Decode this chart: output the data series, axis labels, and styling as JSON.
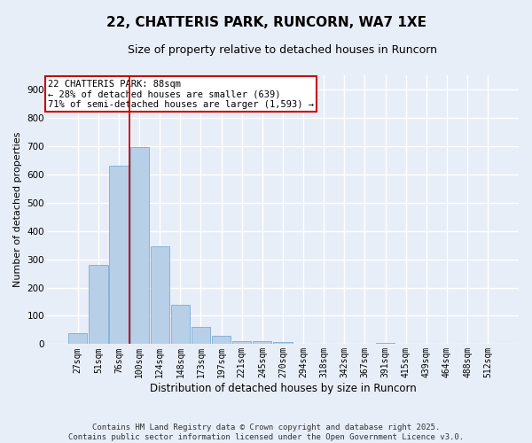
{
  "title": "22, CHATTERIS PARK, RUNCORN, WA7 1XE",
  "subtitle": "Size of property relative to detached houses in Runcorn",
  "xlabel": "Distribution of detached houses by size in Runcorn",
  "ylabel": "Number of detached properties",
  "footer_line1": "Contains HM Land Registry data © Crown copyright and database right 2025.",
  "footer_line2": "Contains public sector information licensed under the Open Government Licence v3.0.",
  "bins": [
    "27sqm",
    "51sqm",
    "76sqm",
    "100sqm",
    "124sqm",
    "148sqm",
    "173sqm",
    "197sqm",
    "221sqm",
    "245sqm",
    "270sqm",
    "294sqm",
    "318sqm",
    "342sqm",
    "367sqm",
    "391sqm",
    "415sqm",
    "439sqm",
    "464sqm",
    "488sqm",
    "512sqm"
  ],
  "values": [
    40,
    280,
    630,
    695,
    345,
    140,
    60,
    30,
    10,
    10,
    8,
    0,
    0,
    0,
    0,
    5,
    0,
    0,
    0,
    0,
    0
  ],
  "bar_color": "#b8cfe8",
  "bar_edge_color": "#7aadd4",
  "background_color": "#e8eef8",
  "fig_background_color": "#e8eef8",
  "grid_color": "#ffffff",
  "red_line_bin_index": 2.5,
  "annotation_text_line1": "22 CHATTERIS PARK: 88sqm",
  "annotation_text_line2": "← 28% of detached houses are smaller (639)",
  "annotation_text_line3": "71% of semi-detached houses are larger (1,593) →",
  "annotation_box_color": "#cc0000",
  "ylim": [
    0,
    950
  ],
  "yticks": [
    0,
    100,
    200,
    300,
    400,
    500,
    600,
    700,
    800,
    900
  ],
  "title_fontsize": 11,
  "subtitle_fontsize": 9,
  "ylabel_fontsize": 8,
  "xlabel_fontsize": 8.5,
  "tick_fontsize": 7,
  "annot_fontsize": 7.5,
  "footer_fontsize": 6.5
}
